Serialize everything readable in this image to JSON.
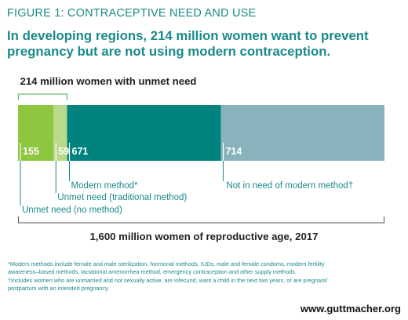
{
  "figure_label": "FIGURE 1: CONTRACEPTIVE NEED AND USE",
  "headline_line1": "In developing regions, 214 million women want to prevent",
  "headline_line2": "pregnancy but are not using modern contraception.",
  "chart_data": {
    "type": "bar",
    "orientation": "horizontal-stacked",
    "bracket_label": "214 million women with unmet need",
    "total_label": "1,600 million women of reproductive age, 2017",
    "segments": [
      {
        "name": "Unmet need (no method)",
        "value": 155,
        "value_label": "155",
        "color": "#8dc63f"
      },
      {
        "name": "Unmet need (traditional method)",
        "value": 59,
        "value_label": "59",
        "color": "#b9d98b"
      },
      {
        "name": "Modern method*",
        "value": 671,
        "value_label": "671",
        "color": "#00827f"
      },
      {
        "name": "Not in need of modern method†",
        "value": 714,
        "value_label": "714",
        "color": "#89b3bc"
      }
    ]
  },
  "footnotes": {
    "line1": "*Modern methods include female and male sterilization, hormonal methods, IUDs, male and female condoms, modern fertility",
    "line2": "awareness–based methods, lactational amenorrhea method, emergency contraception and other supply methods.",
    "line3": "†Includes women who are unmarried and not sexually active, are infecund, want a child in the next two years, or are pregnant/",
    "line4": "postpartum with an intended pregnancy."
  },
  "website": "www.guttmacher.org",
  "colors": {
    "accent_teal": "#1a8a8a",
    "bracket": "#6fbf73"
  }
}
